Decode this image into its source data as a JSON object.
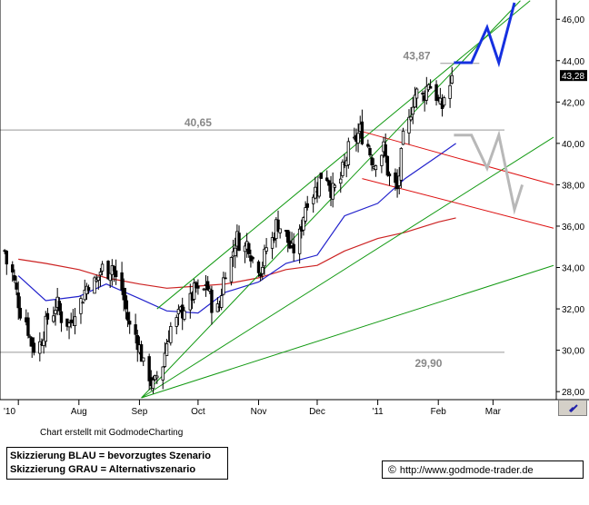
{
  "chart_data": {
    "type": "candlestick",
    "ylim": [
      27.7,
      46.8
    ],
    "y_ticks": [
      "46,00",
      "44,00",
      "42,00",
      "40,00",
      "38,00",
      "36,00",
      "34,00",
      "32,00",
      "30,00",
      "28,00"
    ],
    "x_ticks": [
      "'10",
      "Aug",
      "Sep",
      "Oct",
      "Nov",
      "Dec",
      "'11",
      "Feb",
      "Mar"
    ],
    "last_price": "43,28",
    "levels": [
      {
        "label": "43,87",
        "value": 43.87
      },
      {
        "label": "40,65",
        "value": 40.65
      },
      {
        "label": "29,90",
        "value": 29.9
      }
    ],
    "close_series": [
      34.8,
      33.9,
      33.2,
      32.5,
      31.8,
      31.1,
      30.5,
      30.1,
      30.4,
      30.9,
      31.4,
      31.9,
      32.3,
      31.8,
      31.4,
      31.2,
      31.6,
      32.2,
      32.6,
      33.0,
      33.3,
      33.2,
      33.6,
      34.0,
      33.8,
      34.2,
      33.7,
      33.0,
      32.2,
      31.5,
      30.9,
      30.4,
      29.9,
      29.1,
      28.5,
      28.2,
      28.7,
      29.6,
      30.4,
      31.0,
      31.4,
      31.8,
      31.9,
      32.3,
      32.7,
      33.0,
      32.6,
      33.3,
      32.8,
      32.2,
      31.8,
      33.0,
      33.8,
      34.5,
      35.2,
      35.5,
      34.9,
      35.3,
      34.7,
      34.2,
      33.9,
      34.4,
      35.1,
      35.6,
      36.2,
      36.0,
      35.4,
      35.0,
      34.6,
      35.6,
      36.4,
      37.1,
      37.6,
      37.8,
      38.2,
      38.6,
      38.2,
      37.6,
      37.8,
      38.6,
      38.9,
      39.6,
      40.1,
      40.4,
      40.7,
      39.9,
      39.4,
      39.0,
      39.5,
      39.8,
      38.8,
      38.2,
      37.6,
      38.8,
      40.1,
      41.4,
      42.1,
      42.5,
      42.2,
      42.6,
      43.1,
      42.4,
      41.8,
      41.7,
      42.5,
      43.3
    ],
    "ma_blue": [
      {
        "x": "2010-07-01",
        "y": 33.6
      },
      {
        "x": "2010-07-15",
        "y": 32.4
      },
      {
        "x": "2010-08-01",
        "y": 32.6
      },
      {
        "x": "2010-08-15",
        "y": 33.2
      },
      {
        "x": "2010-09-01",
        "y": 32.5
      },
      {
        "x": "2010-09-15",
        "y": 31.9
      },
      {
        "x": "2010-10-01",
        "y": 31.8
      },
      {
        "x": "2010-10-15",
        "y": 32.8
      },
      {
        "x": "2010-11-01",
        "y": 33.3
      },
      {
        "x": "2010-11-15",
        "y": 34.2
      },
      {
        "x": "2010-12-01",
        "y": 34.6
      },
      {
        "x": "2010-12-15",
        "y": 36.5
      },
      {
        "x": "2011-01-01",
        "y": 37.1
      },
      {
        "x": "2011-01-15",
        "y": 38.3
      },
      {
        "x": "2011-02-01",
        "y": 39.4
      },
      {
        "x": "2011-02-10",
        "y": 40.0
      }
    ],
    "ma_red": [
      {
        "x": "2010-07-01",
        "y": 34.4
      },
      {
        "x": "2010-07-15",
        "y": 34.2
      },
      {
        "x": "2010-08-01",
        "y": 33.9
      },
      {
        "x": "2010-08-15",
        "y": 33.5
      },
      {
        "x": "2010-09-01",
        "y": 33.2
      },
      {
        "x": "2010-09-15",
        "y": 33.0
      },
      {
        "x": "2010-10-01",
        "y": 33.1
      },
      {
        "x": "2010-10-15",
        "y": 33.2
      },
      {
        "x": "2010-11-01",
        "y": 33.5
      },
      {
        "x": "2010-11-15",
        "y": 33.9
      },
      {
        "x": "2010-12-01",
        "y": 34.1
      },
      {
        "x": "2010-12-15",
        "y": 34.8
      },
      {
        "x": "2011-01-01",
        "y": 35.4
      },
      {
        "x": "2011-01-15",
        "y": 35.7
      },
      {
        "x": "2011-02-01",
        "y": 36.2
      },
      {
        "x": "2011-02-10",
        "y": 36.4
      }
    ],
    "trend_lines": [
      {
        "color": "#119911",
        "from": {
          "x": "2010-09-02",
          "y": 27.7
        },
        "to": {
          "x": "2011-03-15",
          "y": 46.9
        }
      },
      {
        "color": "#119911",
        "from": {
          "x": "2010-09-10",
          "y": 32.0
        },
        "to": {
          "x": "2011-03-20",
          "y": 46.9
        }
      },
      {
        "color": "#119911",
        "from": {
          "x": "2010-09-02",
          "y": 27.7
        },
        "to": {
          "x": "2011-04-01",
          "y": 40.3
        }
      },
      {
        "color": "#119911",
        "from": {
          "x": "2010-09-02",
          "y": 27.7
        },
        "to": {
          "x": "2011-04-01",
          "y": 34.1
        }
      },
      {
        "color": "#dd1111",
        "from": {
          "x": "2010-12-23",
          "y": 40.6
        },
        "to": {
          "x": "2011-04-01",
          "y": 38.0
        }
      },
      {
        "color": "#dd1111",
        "from": {
          "x": "2010-12-24",
          "y": 38.3
        },
        "to": {
          "x": "2011-04-01",
          "y": 35.9
        }
      }
    ],
    "scenario_blue": [
      {
        "x": "2011-02-09",
        "y": 43.9
      },
      {
        "x": "2011-02-18",
        "y": 43.9
      },
      {
        "x": "2011-02-26",
        "y": 45.6
      },
      {
        "x": "2011-03-04",
        "y": 43.9
      },
      {
        "x": "2011-03-12",
        "y": 46.8
      }
    ],
    "scenario_grey": [
      {
        "x": "2011-02-09",
        "y": 40.4
      },
      {
        "x": "2011-02-18",
        "y": 40.4
      },
      {
        "x": "2011-02-26",
        "y": 38.8
      },
      {
        "x": "2011-03-04",
        "y": 40.4
      },
      {
        "x": "2011-03-12",
        "y": 36.8
      },
      {
        "x": "2011-03-16",
        "y": 38.0
      }
    ],
    "colors": {
      "blue_ma": "#2222cc",
      "red_ma": "#cc2222",
      "green": "#119911",
      "red_channel": "#dd1111",
      "scenario_blue": "#1530e0",
      "scenario_grey": "#b8b8b8",
      "level_line": "#999999"
    }
  },
  "footer": {
    "credit": "Chart erstellt mit GodmodeCharting",
    "legend_blue": "Skizzierung BLAU = bevorzugtes Szenario",
    "legend_grey": "Skizzierung GRAU = Alternativszenario",
    "url": "http://www.godmode-trader.de",
    "url_icon": "copyright-icon",
    "corner_icon": "zoom-icon"
  }
}
